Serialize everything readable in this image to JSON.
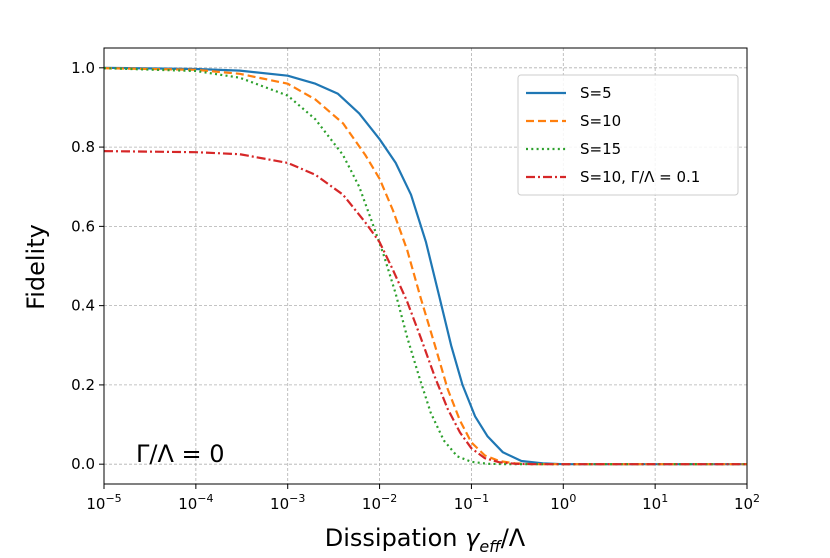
{
  "chart_data": {
    "type": "line",
    "xscale": "log",
    "xlabel_main": "Dissipation ",
    "xlabel_symbol": "γ",
    "xlabel_sub": "eff",
    "xlabel_tail": "/Λ",
    "ylabel": "Fidelity",
    "xlim": [
      1e-05,
      100
    ],
    "ylim": [
      -0.05,
      1.05
    ],
    "x_ticks": [
      {
        "base": "10",
        "exp": "−5",
        "value": 1e-05
      },
      {
        "base": "10",
        "exp": "−4",
        "value": 0.0001
      },
      {
        "base": "10",
        "exp": "−3",
        "value": 0.001
      },
      {
        "base": "10",
        "exp": "−2",
        "value": 0.01
      },
      {
        "base": "10",
        "exp": "−1",
        "value": 0.1
      },
      {
        "base": "10",
        "exp": "0",
        "value": 1
      },
      {
        "base": "10",
        "exp": "1",
        "value": 10
      },
      {
        "base": "10",
        "exp": "2",
        "value": 100
      }
    ],
    "y_ticks": [
      {
        "label": "0.0",
        "value": 0.0
      },
      {
        "label": "0.2",
        "value": 0.2
      },
      {
        "label": "0.4",
        "value": 0.4
      },
      {
        "label": "0.6",
        "value": 0.6
      },
      {
        "label": "0.8",
        "value": 0.8
      },
      {
        "label": "1.0",
        "value": 1.0
      }
    ],
    "grid": true,
    "annotation": "Γ/Λ = 0",
    "legend_position": "top-right",
    "series": [
      {
        "name": "S=5",
        "color": "#1f77b4",
        "style": "solid",
        "x": [
          1e-05,
          0.0001,
          0.0003,
          0.001,
          0.002,
          0.0035,
          0.006,
          0.01,
          0.015,
          0.022,
          0.032,
          0.045,
          0.06,
          0.08,
          0.11,
          0.15,
          0.22,
          0.35,
          0.6,
          1,
          10,
          100
        ],
        "y": [
          1.0,
          0.997,
          0.993,
          0.98,
          0.96,
          0.935,
          0.885,
          0.82,
          0.76,
          0.68,
          0.56,
          0.42,
          0.3,
          0.2,
          0.12,
          0.07,
          0.03,
          0.008,
          0.002,
          0.0,
          0.0,
          0.0
        ]
      },
      {
        "name": "S=10",
        "color": "#ff7f0e",
        "style": "dashed",
        "x": [
          1e-05,
          0.0001,
          0.0003,
          0.001,
          0.002,
          0.004,
          0.007,
          0.01,
          0.014,
          0.02,
          0.028,
          0.04,
          0.055,
          0.075,
          0.1,
          0.14,
          0.2,
          0.3,
          0.5,
          1,
          10,
          100
        ],
        "y": [
          0.999,
          0.995,
          0.985,
          0.96,
          0.92,
          0.86,
          0.78,
          0.72,
          0.64,
          0.54,
          0.42,
          0.3,
          0.19,
          0.11,
          0.055,
          0.022,
          0.008,
          0.002,
          0.0,
          0.0,
          0.0,
          0.0
        ]
      },
      {
        "name": "S=15",
        "color": "#2ca02c",
        "style": "dotted",
        "x": [
          1e-05,
          0.0001,
          0.0003,
          0.001,
          0.002,
          0.004,
          0.006,
          0.008,
          0.011,
          0.015,
          0.02,
          0.027,
          0.036,
          0.05,
          0.07,
          0.1,
          0.15,
          0.25,
          0.5,
          1,
          10,
          100
        ],
        "y": [
          0.999,
          0.992,
          0.975,
          0.93,
          0.87,
          0.78,
          0.7,
          0.62,
          0.53,
          0.43,
          0.32,
          0.22,
          0.13,
          0.06,
          0.02,
          0.006,
          0.001,
          0.0,
          0.0,
          0.0,
          0.0,
          0.0
        ]
      },
      {
        "name": "S=10, Γ/Λ = 0.1",
        "color": "#d62728",
        "style": "dashdot",
        "x": [
          1e-05,
          0.0001,
          0.0003,
          0.001,
          0.002,
          0.004,
          0.007,
          0.01,
          0.014,
          0.02,
          0.028,
          0.04,
          0.055,
          0.075,
          0.1,
          0.14,
          0.2,
          0.3,
          0.5,
          1,
          10,
          100
        ],
        "y": [
          0.79,
          0.787,
          0.782,
          0.76,
          0.73,
          0.68,
          0.61,
          0.56,
          0.49,
          0.41,
          0.32,
          0.22,
          0.14,
          0.08,
          0.04,
          0.015,
          0.005,
          0.001,
          0.0,
          0.0,
          0.0,
          0.0
        ]
      }
    ]
  }
}
